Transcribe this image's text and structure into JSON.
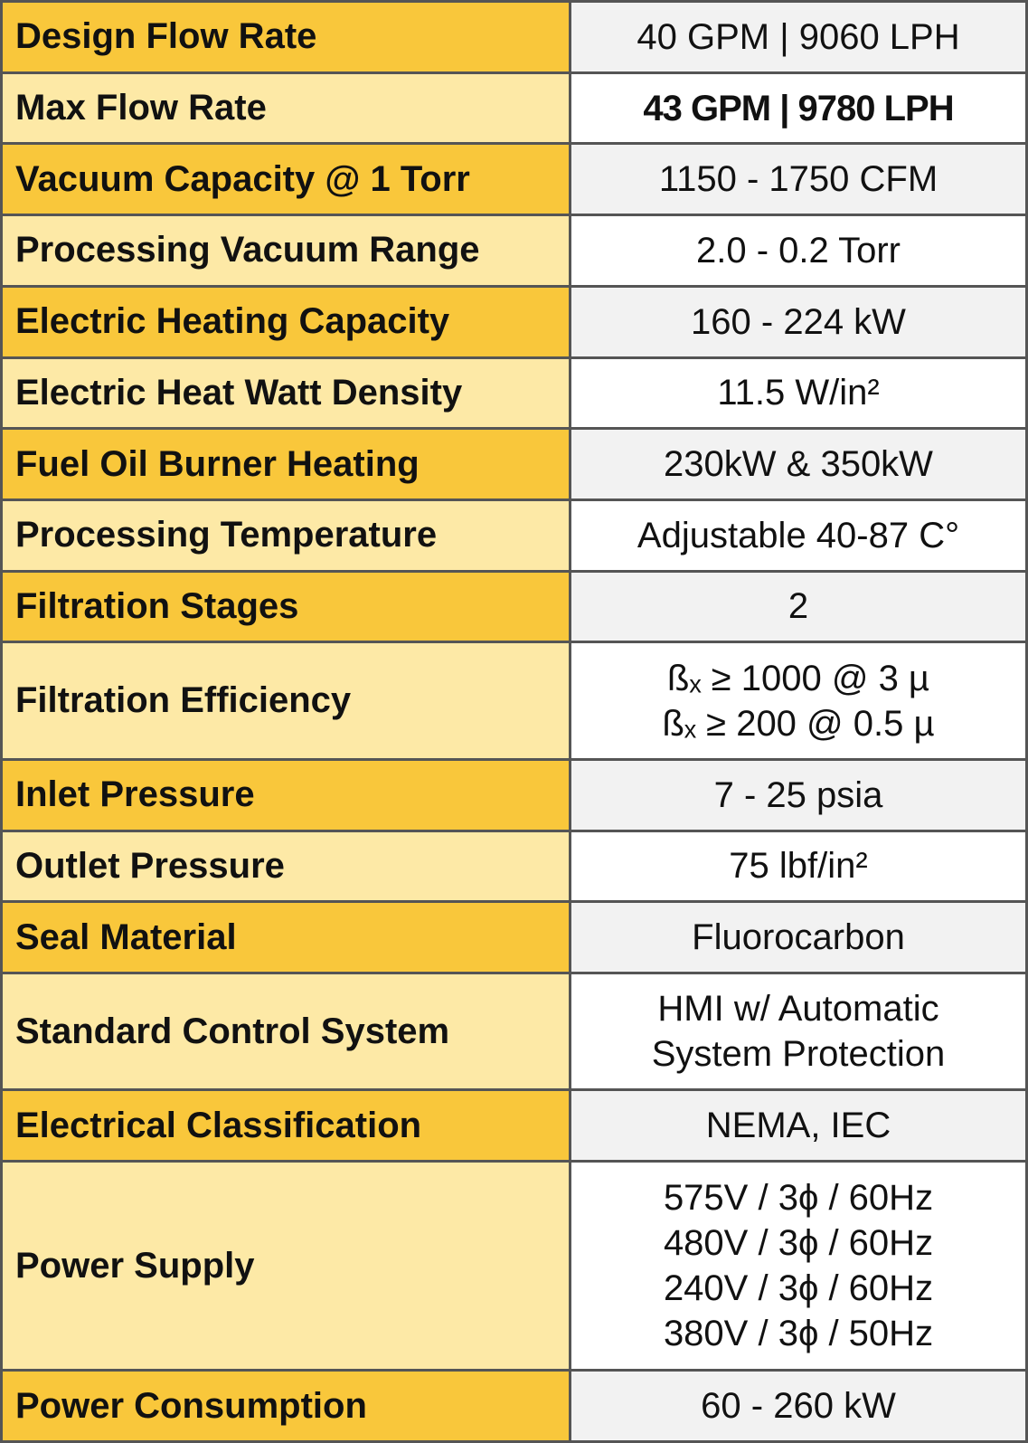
{
  "table": {
    "rows": [
      {
        "label": "Design Flow Rate",
        "value": [
          "40 GPM  |  9060 LPH"
        ]
      },
      {
        "label": "Max Flow Rate",
        "value": [
          "43 GPM  |  9780 LPH"
        ],
        "bold": true
      },
      {
        "label": "Vacuum Capacity @ 1 Torr",
        "value": [
          "1150 - 1750 CFM"
        ]
      },
      {
        "label": "Processing Vacuum  Range",
        "value": [
          "2.0 - 0.2 Torr"
        ]
      },
      {
        "label": "Electric Heating Capacity",
        "value": [
          "160 - 224 kW"
        ]
      },
      {
        "label": "Electric Heat Watt Density",
        "value": [
          "11.5 W/in²"
        ]
      },
      {
        "label": "Fuel Oil Burner Heating",
        "value": [
          "230kW & 350kW"
        ]
      },
      {
        "label": "Processing Temperature",
        "value": [
          "Adjustable  40-87 C°"
        ]
      },
      {
        "label": "Filtration Stages",
        "value": [
          "2"
        ]
      },
      {
        "label": "Filtration Efficiency",
        "value": [
          "ßₓ ≥ 1000 @ 3 µ",
          "ßₓ ≥ 200 @ 0.5 µ"
        ]
      },
      {
        "label": "Inlet Pressure",
        "value": [
          "7  -  25 psia"
        ]
      },
      {
        "label": "Outlet Pressure",
        "value": [
          "75 lbf/in²"
        ]
      },
      {
        "label": "Seal Material",
        "value": [
          "Fluorocarbon"
        ]
      },
      {
        "label": "Standard Control System",
        "value": [
          "HMI w/ Automatic",
          "System Protection"
        ]
      },
      {
        "label": "Electrical Classification",
        "value": [
          "NEMA, IEC"
        ]
      },
      {
        "label": "Power Supply",
        "value": [
          "575V / 3ϕ / 60Hz",
          "480V / 3ϕ / 60Hz",
          "240V / 3ϕ / 60Hz",
          "380V / 3ϕ / 50Hz"
        ]
      },
      {
        "label": "Power Consumption",
        "value": [
          "60 - 260 kW"
        ]
      }
    ]
  }
}
